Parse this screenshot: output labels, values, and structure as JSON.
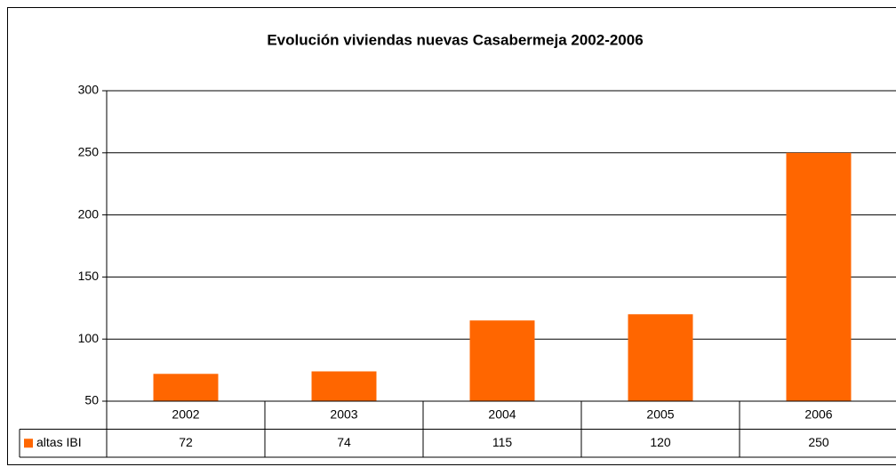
{
  "chart_data": {
    "type": "bar",
    "title": "Evolución viviendas nuevas Casabermeja 2002-2006",
    "categories": [
      "2002",
      "2003",
      "2004",
      "2005",
      "2006"
    ],
    "series": [
      {
        "name": "altas IBI",
        "color": "#ff6600",
        "values": [
          72,
          74,
          115,
          120,
          250
        ]
      }
    ],
    "ylim": [
      50,
      300
    ],
    "yticks": [
      50,
      100,
      150,
      200,
      250,
      300
    ],
    "grid": true,
    "legend": "bottom"
  }
}
